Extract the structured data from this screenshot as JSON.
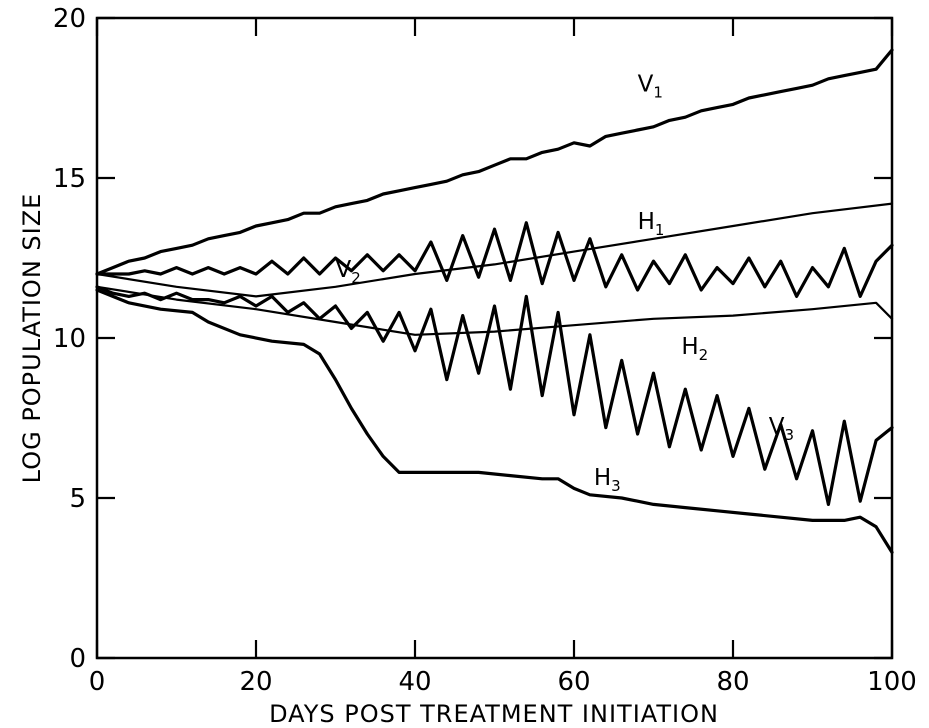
{
  "chart_data": {
    "type": "line",
    "title": "",
    "xlabel": "DAYS POST TREATMENT INITIATION",
    "ylabel": "LOG POPULATION SIZE",
    "xlim": [
      0,
      100
    ],
    "ylim": [
      0,
      20
    ],
    "xticks": [
      0,
      20,
      40,
      60,
      80,
      100
    ],
    "yticks": [
      0,
      5,
      10,
      15,
      20
    ],
    "grid": false,
    "series": [
      {
        "name": "V1",
        "label_main": "V",
        "label_sub": "1",
        "x": [
          0,
          2,
          4,
          6,
          8,
          10,
          12,
          14,
          16,
          18,
          20,
          22,
          24,
          26,
          28,
          30,
          32,
          34,
          36,
          38,
          40,
          42,
          44,
          46,
          48,
          50,
          52,
          54,
          56,
          58,
          60,
          62,
          64,
          66,
          68,
          70,
          72,
          74,
          76,
          78,
          80,
          82,
          84,
          86,
          88,
          90,
          92,
          94,
          96,
          98,
          100
        ],
        "y": [
          12.0,
          12.2,
          12.4,
          12.5,
          12.7,
          12.8,
          12.9,
          13.1,
          13.2,
          13.3,
          13.5,
          13.6,
          13.7,
          13.9,
          13.9,
          14.1,
          14.2,
          14.3,
          14.5,
          14.6,
          14.7,
          14.8,
          14.9,
          15.1,
          15.2,
          15.4,
          15.6,
          15.6,
          15.8,
          15.9,
          16.1,
          16.0,
          16.3,
          16.4,
          16.5,
          16.6,
          16.8,
          16.9,
          17.1,
          17.2,
          17.3,
          17.5,
          17.6,
          17.7,
          17.8,
          17.9,
          18.1,
          18.2,
          18.3,
          18.4,
          19.0
        ],
        "stroke_width": 3.2
      },
      {
        "name": "H1",
        "label_main": "H",
        "label_sub": "1",
        "x": [
          0,
          10,
          20,
          30,
          40,
          50,
          60,
          70,
          80,
          90,
          100
        ],
        "y": [
          12.0,
          11.6,
          11.3,
          11.6,
          12.0,
          12.3,
          12.7,
          13.1,
          13.5,
          13.9,
          14.2
        ],
        "stroke_width": 2.2
      },
      {
        "name": "V2",
        "label_main": "V",
        "label_sub": "2",
        "x": [
          0,
          2,
          4,
          6,
          8,
          10,
          12,
          14,
          16,
          18,
          20,
          22,
          24,
          26,
          28,
          30,
          32,
          34,
          36,
          38,
          40,
          42,
          44,
          46,
          48,
          50,
          52,
          54,
          56,
          58,
          60,
          62,
          64,
          66,
          68,
          70,
          72,
          74,
          76,
          78,
          80,
          82,
          84,
          86,
          88,
          90,
          92,
          94,
          96,
          98,
          100
        ],
        "y": [
          12.0,
          12.0,
          12.0,
          12.1,
          12.0,
          12.2,
          12.0,
          12.2,
          12.0,
          12.2,
          12.0,
          12.4,
          12.0,
          12.5,
          12.0,
          12.5,
          12.1,
          12.6,
          12.1,
          12.6,
          12.1,
          13.0,
          11.8,
          13.2,
          11.9,
          13.4,
          11.8,
          13.6,
          11.7,
          13.3,
          11.8,
          13.1,
          11.6,
          12.6,
          11.5,
          12.4,
          11.7,
          12.6,
          11.5,
          12.2,
          11.7,
          12.5,
          11.6,
          12.4,
          11.3,
          12.2,
          11.6,
          12.8,
          11.3,
          12.4,
          12.9
        ],
        "stroke_width": 3.2
      },
      {
        "name": "H2",
        "label_main": "H",
        "label_sub": "2",
        "x": [
          0,
          10,
          20,
          30,
          40,
          50,
          60,
          70,
          80,
          90,
          98,
          100
        ],
        "y": [
          11.6,
          11.2,
          10.9,
          10.5,
          10.1,
          10.2,
          10.4,
          10.6,
          10.7,
          10.9,
          11.1,
          10.6
        ],
        "stroke_width": 2.2
      },
      {
        "name": "V3",
        "label_main": "V",
        "label_sub": "3",
        "x": [
          0,
          2,
          4,
          6,
          8,
          10,
          12,
          14,
          16,
          18,
          20,
          22,
          24,
          26,
          28,
          30,
          32,
          34,
          36,
          38,
          40,
          42,
          44,
          46,
          48,
          50,
          52,
          54,
          56,
          58,
          60,
          62,
          64,
          66,
          68,
          70,
          72,
          74,
          76,
          78,
          80,
          82,
          84,
          86,
          88,
          90,
          92,
          94,
          96,
          98,
          100
        ],
        "y": [
          11.6,
          11.4,
          11.3,
          11.4,
          11.2,
          11.4,
          11.2,
          11.2,
          11.1,
          11.3,
          11.0,
          11.3,
          10.8,
          11.1,
          10.6,
          11.0,
          10.3,
          10.8,
          9.9,
          10.8,
          9.6,
          10.9,
          8.7,
          10.7,
          8.9,
          11.0,
          8.4,
          11.3,
          8.2,
          10.8,
          7.6,
          10.1,
          7.2,
          9.3,
          7.0,
          8.9,
          6.6,
          8.4,
          6.5,
          8.2,
          6.3,
          7.8,
          5.9,
          7.3,
          5.6,
          7.1,
          4.8,
          7.4,
          4.9,
          6.8,
          7.2
        ],
        "stroke_width": 3.2
      },
      {
        "name": "H3",
        "label_main": "H",
        "label_sub": "3",
        "x": [
          0,
          4,
          8,
          12,
          14,
          18,
          22,
          26,
          28,
          30,
          32,
          34,
          36,
          38,
          40,
          44,
          48,
          52,
          56,
          58,
          60,
          62,
          66,
          70,
          74,
          78,
          82,
          86,
          90,
          94,
          96,
          98,
          100
        ],
        "y": [
          11.5,
          11.1,
          10.9,
          10.8,
          10.5,
          10.1,
          9.9,
          9.8,
          9.5,
          8.7,
          7.8,
          7.0,
          6.3,
          5.8,
          5.8,
          5.8,
          5.8,
          5.7,
          5.6,
          5.6,
          5.3,
          5.1,
          5.0,
          4.8,
          4.7,
          4.6,
          4.5,
          4.4,
          4.3,
          4.3,
          4.4,
          4.1,
          3.3
        ],
        "stroke_width": 3.2
      }
    ],
    "annotations": [
      {
        "series": "V1",
        "x": 68,
        "y": 17.7
      },
      {
        "series": "H1",
        "x": 68,
        "y": 13.4
      },
      {
        "series": "V2",
        "x": 30,
        "y": 11.9
      },
      {
        "series": "H2",
        "x": 73.5,
        "y": 9.5
      },
      {
        "series": "V3",
        "x": 84.5,
        "y": 7.0
      },
      {
        "series": "H3",
        "x": 62.5,
        "y": 5.4
      }
    ]
  }
}
